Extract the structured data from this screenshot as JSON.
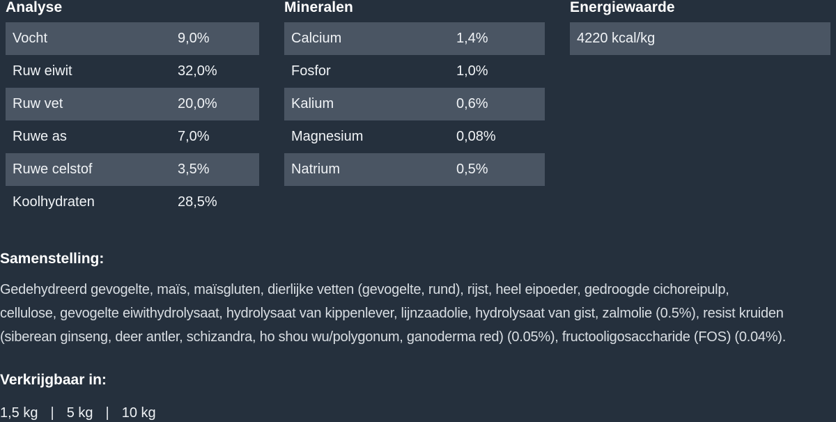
{
  "colors": {
    "background": "#25303d",
    "row_highlight": "#4a5563",
    "heading_text": "#ffffff",
    "body_text": "#d9dee3",
    "table_text": "#f0f3f6"
  },
  "sections": {
    "analyse": {
      "title": "Analyse",
      "rows": [
        {
          "label": "Vocht",
          "value": "9,0%"
        },
        {
          "label": "Ruw eiwit",
          "value": "32,0%"
        },
        {
          "label": "Ruw vet",
          "value": "20,0%"
        },
        {
          "label": "Ruwe as",
          "value": "7,0%"
        },
        {
          "label": "Ruwe celstof",
          "value": "3,5%"
        },
        {
          "label": "Koolhydraten",
          "value": "28,5%"
        }
      ]
    },
    "mineralen": {
      "title": "Mineralen",
      "rows": [
        {
          "label": "Calcium",
          "value": "1,4%"
        },
        {
          "label": "Fosfor",
          "value": "1,0%"
        },
        {
          "label": "Kalium",
          "value": "0,6%"
        },
        {
          "label": "Magnesium",
          "value": "0,08%"
        },
        {
          "label": "Natrium",
          "value": "0,5%"
        }
      ]
    },
    "energiewaarde": {
      "title": "Energiewaarde",
      "rows": [
        {
          "label": "4220 kcal/kg",
          "value": ""
        }
      ]
    },
    "samenstelling": {
      "title": "Samenstelling:",
      "lines": [
        "Gedehydreerd gevogelte, maïs, maïsgluten, dierlijke vetten (gevogelte, rund), rijst, heel eipoeder, gedroogde cichoreipulp,",
        "cellulose, gevogelte eiwithydrolysaat, hydrolysaat van kippenlever, lijnzaadolie, hydrolysaat van gist, zalmolie (0.5%), resist kruiden",
        "(siberean ginseng, deer antler, schizandra, ho shou wu/polygonum, ganoderma red) (0.05%), fructooligosaccharide (FOS) (0.04%)."
      ]
    },
    "verkrijgbaar": {
      "title": "Verkrijgbaar in:",
      "sizes": [
        "1,5 kg",
        "5 kg",
        "10 kg"
      ],
      "separator": "|"
    }
  }
}
